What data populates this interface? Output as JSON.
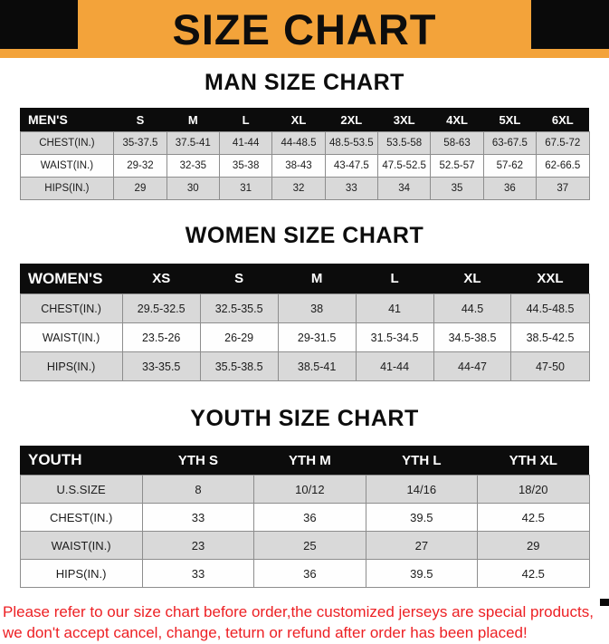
{
  "banner": {
    "title": "SIZE CHART",
    "background": "#F3A33A",
    "corner_color": "#0a0a0a"
  },
  "sections": [
    {
      "id": "men",
      "heading": "MAN SIZE CHART",
      "table": {
        "header": [
          "MEN'S",
          "S",
          "M",
          "L",
          "XL",
          "2XL",
          "3XL",
          "4XL",
          "5XL",
          "6XL"
        ],
        "rows": [
          [
            "CHEST(IN.)",
            "35-37.5",
            "37.5-41",
            "41-44",
            "44-48.5",
            "48.5-53.5",
            "53.5-58",
            "58-63",
            "63-67.5",
            "67.5-72"
          ],
          [
            "WAIST(IN.)",
            "29-32",
            "32-35",
            "35-38",
            "38-43",
            "43-47.5",
            "47.5-52.5",
            "52.5-57",
            "57-62",
            "62-66.5"
          ],
          [
            "HIPS(IN.)",
            "29",
            "30",
            "31",
            "32",
            "33",
            "34",
            "35",
            "36",
            "37"
          ]
        ]
      }
    },
    {
      "id": "women",
      "heading": "WOMEN SIZE CHART",
      "table": {
        "header": [
          "WOMEN'S",
          "XS",
          "S",
          "M",
          "L",
          "XL",
          "XXL"
        ],
        "rows": [
          [
            "CHEST(IN.)",
            "29.5-32.5",
            "32.5-35.5",
            "38",
            "41",
            "44.5",
            "44.5-48.5"
          ],
          [
            "WAIST(IN.)",
            "23.5-26",
            "26-29",
            "29-31.5",
            "31.5-34.5",
            "34.5-38.5",
            "38.5-42.5"
          ],
          [
            "HIPS(IN.)",
            "33-35.5",
            "35.5-38.5",
            "38.5-41",
            "41-44",
            "44-47",
            "47-50"
          ]
        ]
      }
    },
    {
      "id": "youth",
      "heading": "YOUTH SIZE CHART",
      "table": {
        "header": [
          "YOUTH",
          "YTH S",
          "YTH M",
          "YTH L",
          "YTH XL"
        ],
        "rows": [
          [
            "U.S.SIZE",
            "8",
            "10/12",
            "14/16",
            "18/20"
          ],
          [
            "CHEST(IN.)",
            "33",
            "36",
            "39.5",
            "42.5"
          ],
          [
            "WAIST(IN.)",
            "23",
            "25",
            "27",
            "29"
          ],
          [
            "HIPS(IN.)",
            "33",
            "36",
            "39.5",
            "42.5"
          ]
        ]
      }
    }
  ],
  "footer": {
    "color": "#ED2024",
    "line1": "Please refer to our size chart before order,the customized jerseys are special products,",
    "line2": "we don't accept cancel, change, teturn or refund after order has been placed!"
  }
}
